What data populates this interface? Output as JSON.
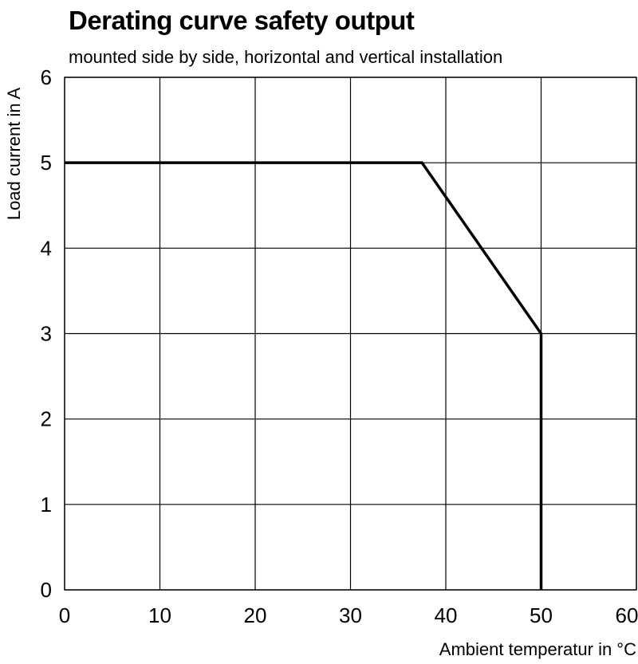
{
  "chart_data": {
    "type": "line",
    "title": "Derating curve safety output",
    "subtitle": "mounted side by side, horizontal and vertical installation",
    "xlabel": "Ambient temperatur in °C",
    "ylabel": "Load  current in A",
    "xlim": [
      0,
      60
    ],
    "ylim": [
      0,
      6
    ],
    "xticks": [
      0,
      10,
      20,
      30,
      40,
      50,
      60
    ],
    "yticks": [
      0,
      1,
      2,
      3,
      4,
      5,
      6
    ],
    "grid": true,
    "series": [
      {
        "x": [
          0,
          37.5,
          50,
          50
        ],
        "y": [
          5,
          5,
          3,
          0
        ],
        "color": "#000000"
      }
    ]
  }
}
